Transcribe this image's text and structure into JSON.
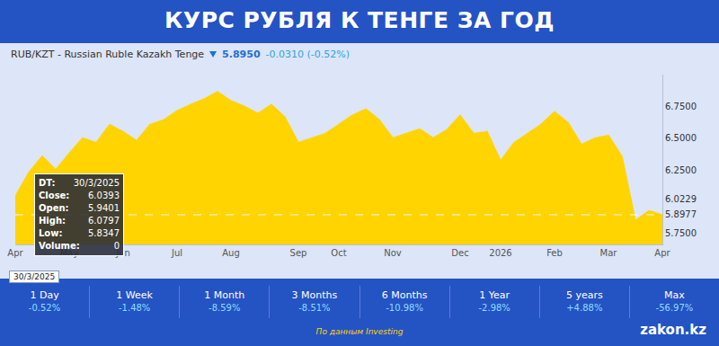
{
  "chart_data": {
    "type": "area",
    "categories": [
      "Apr",
      null,
      null,
      null,
      "May",
      null,
      null,
      null,
      "Jun",
      null,
      null,
      null,
      "Jul",
      null,
      null,
      null,
      "Aug",
      null,
      null,
      null,
      null,
      "Sep",
      null,
      null,
      "Oct",
      null,
      null,
      null,
      "Nov",
      null,
      null,
      null,
      null,
      "Dec",
      null,
      null,
      "2026",
      null,
      null,
      null,
      "Feb",
      null,
      null,
      null,
      "Mar",
      null,
      null,
      null,
      "Apr"
    ],
    "values": [
      6.04,
      6.229,
      6.357,
      6.25,
      6.379,
      6.5,
      6.464,
      6.607,
      6.55,
      6.479,
      6.607,
      6.643,
      6.714,
      6.764,
      6.807,
      6.864,
      6.793,
      6.75,
      6.693,
      6.764,
      6.664,
      6.464,
      6.5,
      6.536,
      6.607,
      6.679,
      6.729,
      6.643,
      6.5,
      6.536,
      6.571,
      6.5,
      6.564,
      6.679,
      6.536,
      6.55,
      6.321,
      6.464,
      6.536,
      6.607,
      6.707,
      6.621,
      6.45,
      6.5,
      6.521,
      6.357,
      5.85,
      5.929,
      5.895
    ],
    "color": "#ffd400",
    "ylim": [
      5.664,
      7.0
    ],
    "yticks": [
      {
        "value": 5.75,
        "label": "5.7500"
      },
      5.8977,
      6.0229,
      {
        "value": 6.25,
        "label": "6.2500"
      },
      {
        "value": 6.5,
        "label": "6.5000"
      },
      {
        "value": 6.75,
        "label": "6.7500"
      }
    ],
    "last_value": 5.8977,
    "grid": false
  },
  "header": {
    "title": "КУРС РУБЛЯ К ТЕНГЕ ЗА ГОД",
    "symbol": "RUB/KZT - Russian Ruble Kazakh Tenge",
    "price": "5.8950",
    "change": "-0.0310 (-0.52%)"
  },
  "tooltip": [
    [
      "DT:",
      "30/3/2025"
    ],
    [
      "Close:",
      6.0393
    ],
    [
      "Open:",
      5.9401
    ],
    [
      "High:",
      6.0797
    ],
    [
      "Low:",
      5.8347
    ],
    [
      "Volume:",
      0
    ]
  ],
  "periods": [
    {
      "label": "1 Day",
      "change": "-0.52%"
    },
    {
      "label": "1 Week",
      "change": "-1.48%"
    },
    {
      "label": "1 Month",
      "change": "-8.59%"
    },
    {
      "label": "3 Months",
      "change": "-8.51%"
    },
    {
      "label": "6 Months",
      "change": "-10.98%"
    },
    {
      "label": "1 Year",
      "change": "-2.98%"
    },
    {
      "label": "5 years",
      "change": "+4.88%"
    },
    {
      "label": "Max",
      "change": "-56.97%"
    }
  ],
  "footer": {
    "source": "По данным Investing",
    "brand": "zakon.kz"
  }
}
